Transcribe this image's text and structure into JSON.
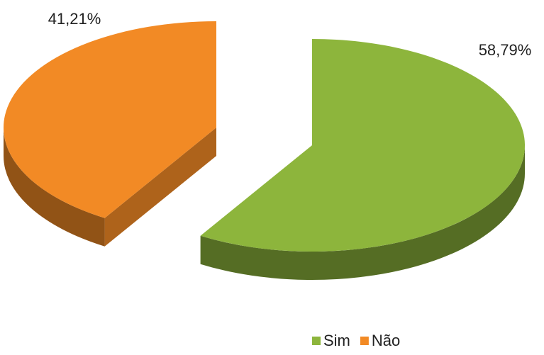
{
  "chart_data": {
    "type": "pie",
    "categories": [
      "Sim",
      "Não"
    ],
    "values": [
      58.79,
      41.21
    ],
    "value_labels": [
      "58,79%",
      "41,21%"
    ],
    "colors": [
      "#8db53c",
      "#f28a25"
    ],
    "legend": "bottom"
  }
}
